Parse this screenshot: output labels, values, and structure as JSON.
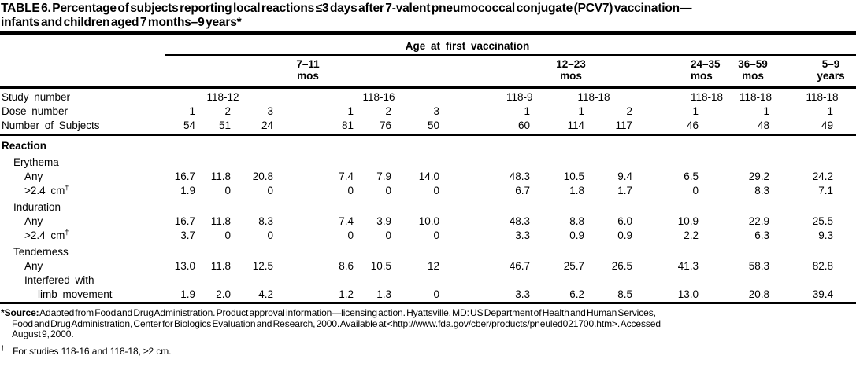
{
  "title": {
    "line1": "TABLE 6. Percentage of subjects reporting local reactions ≤3 days after 7-valent pneumococcal conjugate (PCV7) vaccination—",
    "line2": "infants and children aged 7 months–9 years*"
  },
  "header": {
    "span_label": "Age at first vaccination",
    "groups": [
      {
        "line1": "7–11",
        "line2": "mos"
      },
      {
        "line1": "12–23",
        "line2": "mos"
      },
      {
        "line1": "24–35",
        "line2": "mos"
      },
      {
        "line1": "36–59",
        "line2": "mos"
      },
      {
        "line1": "5–9",
        "line2": "years"
      }
    ]
  },
  "meta_rows": {
    "study_label": "Study number",
    "studies": [
      "118-12",
      "118-16",
      "118-9",
      "118-18",
      "118-18",
      "118-18",
      "118-18"
    ],
    "dose_label": "Dose number",
    "doses": [
      "1",
      "2",
      "3",
      "1",
      "2",
      "3",
      "1",
      "1",
      "2",
      "1",
      "1",
      "1"
    ],
    "subjects_label": "Number of Subjects",
    "subjects": [
      "54",
      "51",
      "24",
      "81",
      "76",
      "50",
      "60",
      "114",
      "117",
      "46",
      "48",
      "49"
    ]
  },
  "body": {
    "rows": [
      {
        "label": "Reaction",
        "type": "section",
        "indent": 0,
        "values": []
      },
      {
        "label": "Erythema",
        "type": "subhead",
        "indent": 1,
        "values": []
      },
      {
        "label": "Any",
        "type": "data",
        "indent": 2,
        "values": [
          "16.7",
          "11.8",
          "20.8",
          "7.4",
          "7.9",
          "14.0",
          "48.3",
          "10.5",
          "9.4",
          "6.5",
          "29.2",
          "24.2"
        ]
      },
      {
        "label": ">2.4 cm",
        "sup": "†",
        "type": "data",
        "indent": 2,
        "values": [
          "1.9",
          "0",
          "0",
          "0",
          "0",
          "0",
          "6.7",
          "1.8",
          "1.7",
          "0",
          "8.3",
          "7.1"
        ]
      },
      {
        "label": "Induration",
        "type": "subhead",
        "indent": 1,
        "values": []
      },
      {
        "label": "Any",
        "type": "data",
        "indent": 2,
        "values": [
          "16.7",
          "11.8",
          "8.3",
          "7.4",
          "3.9",
          "10.0",
          "48.3",
          "8.8",
          "6.0",
          "10.9",
          "22.9",
          "25.5"
        ]
      },
      {
        "label": ">2.4 cm",
        "sup": "†",
        "type": "data",
        "indent": 2,
        "values": [
          "3.7",
          "0",
          "0",
          "0",
          "0",
          "0",
          "3.3",
          "0.9",
          "0.9",
          "2.2",
          "6.3",
          "9.3"
        ]
      },
      {
        "label": "Tenderness",
        "type": "subhead",
        "indent": 1,
        "values": []
      },
      {
        "label": "Any",
        "type": "data",
        "indent": 2,
        "values": [
          "13.0",
          "11.8",
          "12.5",
          "8.6",
          "10.5",
          "12",
          "46.7",
          "25.7",
          "26.5",
          "41.3",
          "58.3",
          "82.8"
        ]
      },
      {
        "label": "Interfered with",
        "type": "data",
        "indent": 2,
        "values": []
      },
      {
        "label": "limb movement",
        "type": "data",
        "indent": 3,
        "values": [
          "1.9",
          "2.0",
          "4.2",
          "1.2",
          "1.3",
          "0",
          "3.3",
          "6.2",
          "8.5",
          "13.0",
          "20.8",
          "39.4"
        ]
      }
    ]
  },
  "footnotes": {
    "source_label": "*Source:",
    "source_line1": " Adapted from Food and Drug Administration. Product approval information—licensing action. Hyattsville, MD: US Department of Health and Human Services,",
    "source_line2": "Food and Drug Administration, Center for Biologics Evaluation and Research, 2000. Available at <http://www.fda.gov/cber/products/pneuled021700.htm>. Accessed",
    "source_line3": "August 9, 2000.",
    "dagger_symbol": "†",
    "dagger_text": "For studies 118-16 and 118-18, ≥2 cm."
  }
}
